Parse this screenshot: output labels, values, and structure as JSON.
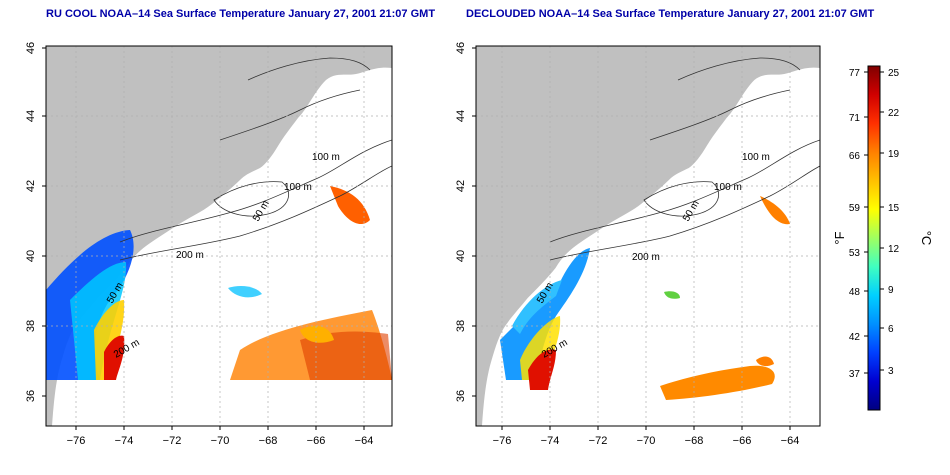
{
  "panels": [
    {
      "title": "RU COOL NOAA–14 Sea Surface Temperature January 27, 2001 21:07 GMT",
      "contour_labels": [
        "100 m",
        "100 m",
        "50 m",
        "200 m",
        "50 m",
        "200 m"
      ]
    },
    {
      "title": "DECLOUDED NOAA–14 Sea Surface Temperature January 27, 2001 21:07 GMT",
      "contour_labels": [
        "100 m",
        "100 m",
        "50 m",
        "200 m",
        "50 m",
        "200 m"
      ]
    }
  ],
  "axes": {
    "lat_ticks": [
      "46",
      "44",
      "42",
      "40",
      "38",
      "36"
    ],
    "lon_ticks": [
      "−76",
      "−74",
      "−72",
      "−70",
      "−68",
      "−66",
      "−64"
    ]
  },
  "colorbar": {
    "fahrenheit_label": "°F",
    "celsius_label": "°C",
    "fahrenheit_ticks": [
      "77",
      "71",
      "66",
      "59",
      "53",
      "48",
      "42",
      "37"
    ],
    "celsius_ticks": [
      "25",
      "22",
      "19",
      "15",
      "12",
      "9",
      "6",
      "3"
    ],
    "colors": [
      "#000080",
      "#0000d0",
      "#0040ff",
      "#0090ff",
      "#00d0ff",
      "#40ffc0",
      "#a0ff60",
      "#ffff00",
      "#ffc000",
      "#ff8000",
      "#ff3000",
      "#d00000",
      "#800000"
    ]
  },
  "colors": {
    "land": "#c0c0c0",
    "title": "#0000a8",
    "grid": "#b0b0b0"
  }
}
